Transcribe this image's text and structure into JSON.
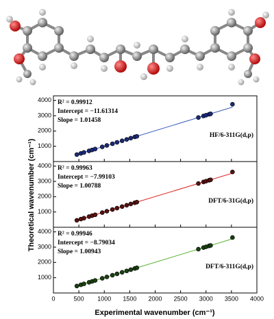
{
  "chart_data": [
    {
      "type": "scatter",
      "ylabel": "Theoretical wavenumber (cm⁻¹)",
      "annotations": [
        "R² = 0.99912",
        "Intercept = −11.61314",
        "Slope = 1.01458"
      ],
      "label": "HF/6-311G(d,p)",
      "xlim": [
        0,
        4000
      ],
      "ylim": [
        0,
        4300
      ],
      "yticks": [
        1000,
        2000,
        3000,
        4000
      ],
      "x": [
        460,
        540,
        600,
        700,
        760,
        820,
        960,
        1050,
        1160,
        1250,
        1350,
        1440,
        1520,
        1600,
        1640,
        2850,
        2950,
        3000,
        3060,
        3090,
        3520
      ],
      "series": [
        {
          "color": "#1a2a7a",
          "values": [
            455,
            536,
            597,
            699,
            759,
            820,
            962,
            1054,
            1165,
            1257,
            1358,
            1449,
            1531,
            1612,
            1652,
            2880,
            2981,
            3032,
            3093,
            3123,
            3750
          ]
        }
      ],
      "fit_line": {
        "color": "#3a5fbf",
        "x": [
          450,
          3520
        ],
        "y": [
          445,
          3560
        ]
      }
    },
    {
      "type": "scatter",
      "annotations": [
        "R² = 0.99963",
        "Intercept = −7.99103",
        "Slope = 1.00788"
      ],
      "label": "DFT/6-31G(d,p)",
      "xlim": [
        0,
        4000
      ],
      "ylim": [
        0,
        4300
      ],
      "yticks": [
        1000,
        2000,
        3000,
        4000
      ],
      "x": [
        460,
        540,
        600,
        700,
        760,
        820,
        960,
        1050,
        1160,
        1250,
        1350,
        1440,
        1520,
        1600,
        1640,
        2850,
        2950,
        3000,
        3060,
        3090,
        3520
      ],
      "series": [
        {
          "color": "#5a1010",
          "values": [
            456,
            536,
            597,
            698,
            758,
            818,
            960,
            1050,
            1161,
            1252,
            1353,
            1443,
            1524,
            1605,
            1645,
            2864,
            2965,
            3016,
            3076,
            3106,
            3620
          ]
        }
      ],
      "fit_line": {
        "color": "#e02020",
        "x": [
          450,
          3520
        ],
        "y": [
          446,
          3540
        ]
      }
    },
    {
      "type": "scatter",
      "xlabel": "Experimental wavenumber (cm⁻¹)",
      "annotations": [
        "R² = 0.99946",
        "Intercept = −8.79034",
        "Slope = 1.00943"
      ],
      "label": "DFT/6-311G(d,p)",
      "xlim": [
        0,
        4000
      ],
      "ylim": [
        0,
        4300
      ],
      "yticks": [
        1000,
        2000,
        3000,
        4000
      ],
      "xticks": [
        0,
        500,
        1000,
        1500,
        2000,
        2500,
        3000,
        3500,
        4000
      ],
      "x": [
        460,
        540,
        600,
        700,
        760,
        820,
        960,
        1050,
        1160,
        1250,
        1350,
        1440,
        1520,
        1600,
        1640,
        2850,
        2950,
        3000,
        3060,
        3090,
        3520
      ],
      "series": [
        {
          "color": "#1a4010",
          "values": [
            456,
            536,
            597,
            698,
            758,
            819,
            960,
            1051,
            1162,
            1253,
            1354,
            1445,
            1525,
            1606,
            1647,
            2868,
            2969,
            3020,
            3080,
            3110,
            3630
          ]
        }
      ],
      "fit_line": {
        "color": "#5ab030",
        "x": [
          450,
          3520
        ],
        "y": [
          445,
          3545
        ]
      }
    }
  ]
}
